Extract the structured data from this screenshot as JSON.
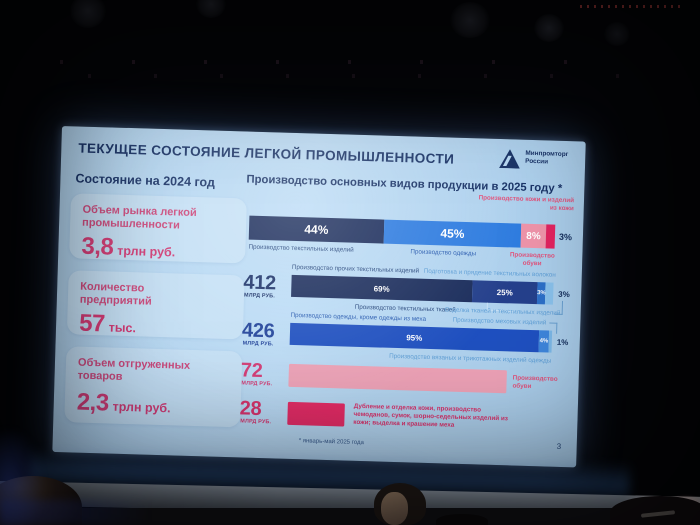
{
  "slide": {
    "title": "ТЕКУЩЕЕ СОСТОЯНИЕ ЛЕГКОЙ ПРОМЫШЛЕННОСТИ",
    "logo": {
      "line1": "Минпромторг",
      "line2": "России"
    },
    "left_panel": {
      "heading": "Состояние на 2024 год",
      "cards": [
        {
          "label": "Объем рынка легкой промышленности",
          "value": "3,8",
          "unit": "трлн руб."
        },
        {
          "label": "Количество предприятий",
          "value": "57",
          "unit": "тыс."
        },
        {
          "label": "Объем отгруженных товаров",
          "value": "2,3",
          "unit": "трлн руб."
        }
      ]
    },
    "footnote": "* январь-май 2025 года",
    "page_number": "3"
  },
  "chart_data": {
    "type": "bar",
    "orientation": "horizontal",
    "title": "Производство основных видов продукции в 2025 году *",
    "unit": "млрд руб.",
    "overview": {
      "stacked_percent": true,
      "segments": [
        {
          "name": "Производство текстильных изделий",
          "pct": 44,
          "label": "44%"
        },
        {
          "name": "Производство одежды",
          "pct": 45,
          "label": "45%"
        },
        {
          "name": "Производство обуви",
          "pct": 8,
          "label": "8%"
        },
        {
          "name": "Производство кожи и изделий из кожи",
          "pct": 3,
          "label": "3%"
        }
      ]
    },
    "rows": [
      {
        "value": "412",
        "unit": "млрд руб.",
        "stacked_percent": true,
        "segments": [
          {
            "name": "Производство прочих текстильных изделий",
            "pct": 69,
            "label": "69%"
          },
          {
            "name": "Производство текстильных тканей",
            "pct": 25,
            "label": "25%"
          },
          {
            "name": "Подготовка и прядение текстильных волокон",
            "pct": 3,
            "label": "3%"
          },
          {
            "name": "Отделка тканей и текстильных изделий",
            "pct": 3,
            "label": "3%"
          }
        ]
      },
      {
        "value": "426",
        "unit": "млрд руб.",
        "stacked_percent": true,
        "segments": [
          {
            "name": "Производство одежды, кроме одежды из меха",
            "pct": 95,
            "label": "95%"
          },
          {
            "name": "Производство вязаных и трикотажных изделий одежды",
            "pct": 4,
            "label": "4%"
          },
          {
            "name": "Производство меховых изделий",
            "pct": 1,
            "label": "1%"
          }
        ]
      },
      {
        "value": "72",
        "unit": "млрд руб.",
        "name": "Производство обуви"
      },
      {
        "value": "28",
        "unit": "млрд руб.",
        "name": "Дубление и отделка кожи, производство чемоданов, сумок, шорно-седельных изделий из кожи; выделка и крашение меха"
      }
    ]
  },
  "colors": {
    "slide_bg": "#b4d6f1",
    "card_bg": "#c6e1f6",
    "title_navy": "#1a3468",
    "stat_pink": "#d43b75",
    "navy_bar": "#1b2d5c",
    "royal_blue_bar": "#2e7ce0",
    "light_pink_bar": "#ef94aa",
    "crimson_bar": "#e32460",
    "light_blue_bar": "#8ac2ec"
  }
}
